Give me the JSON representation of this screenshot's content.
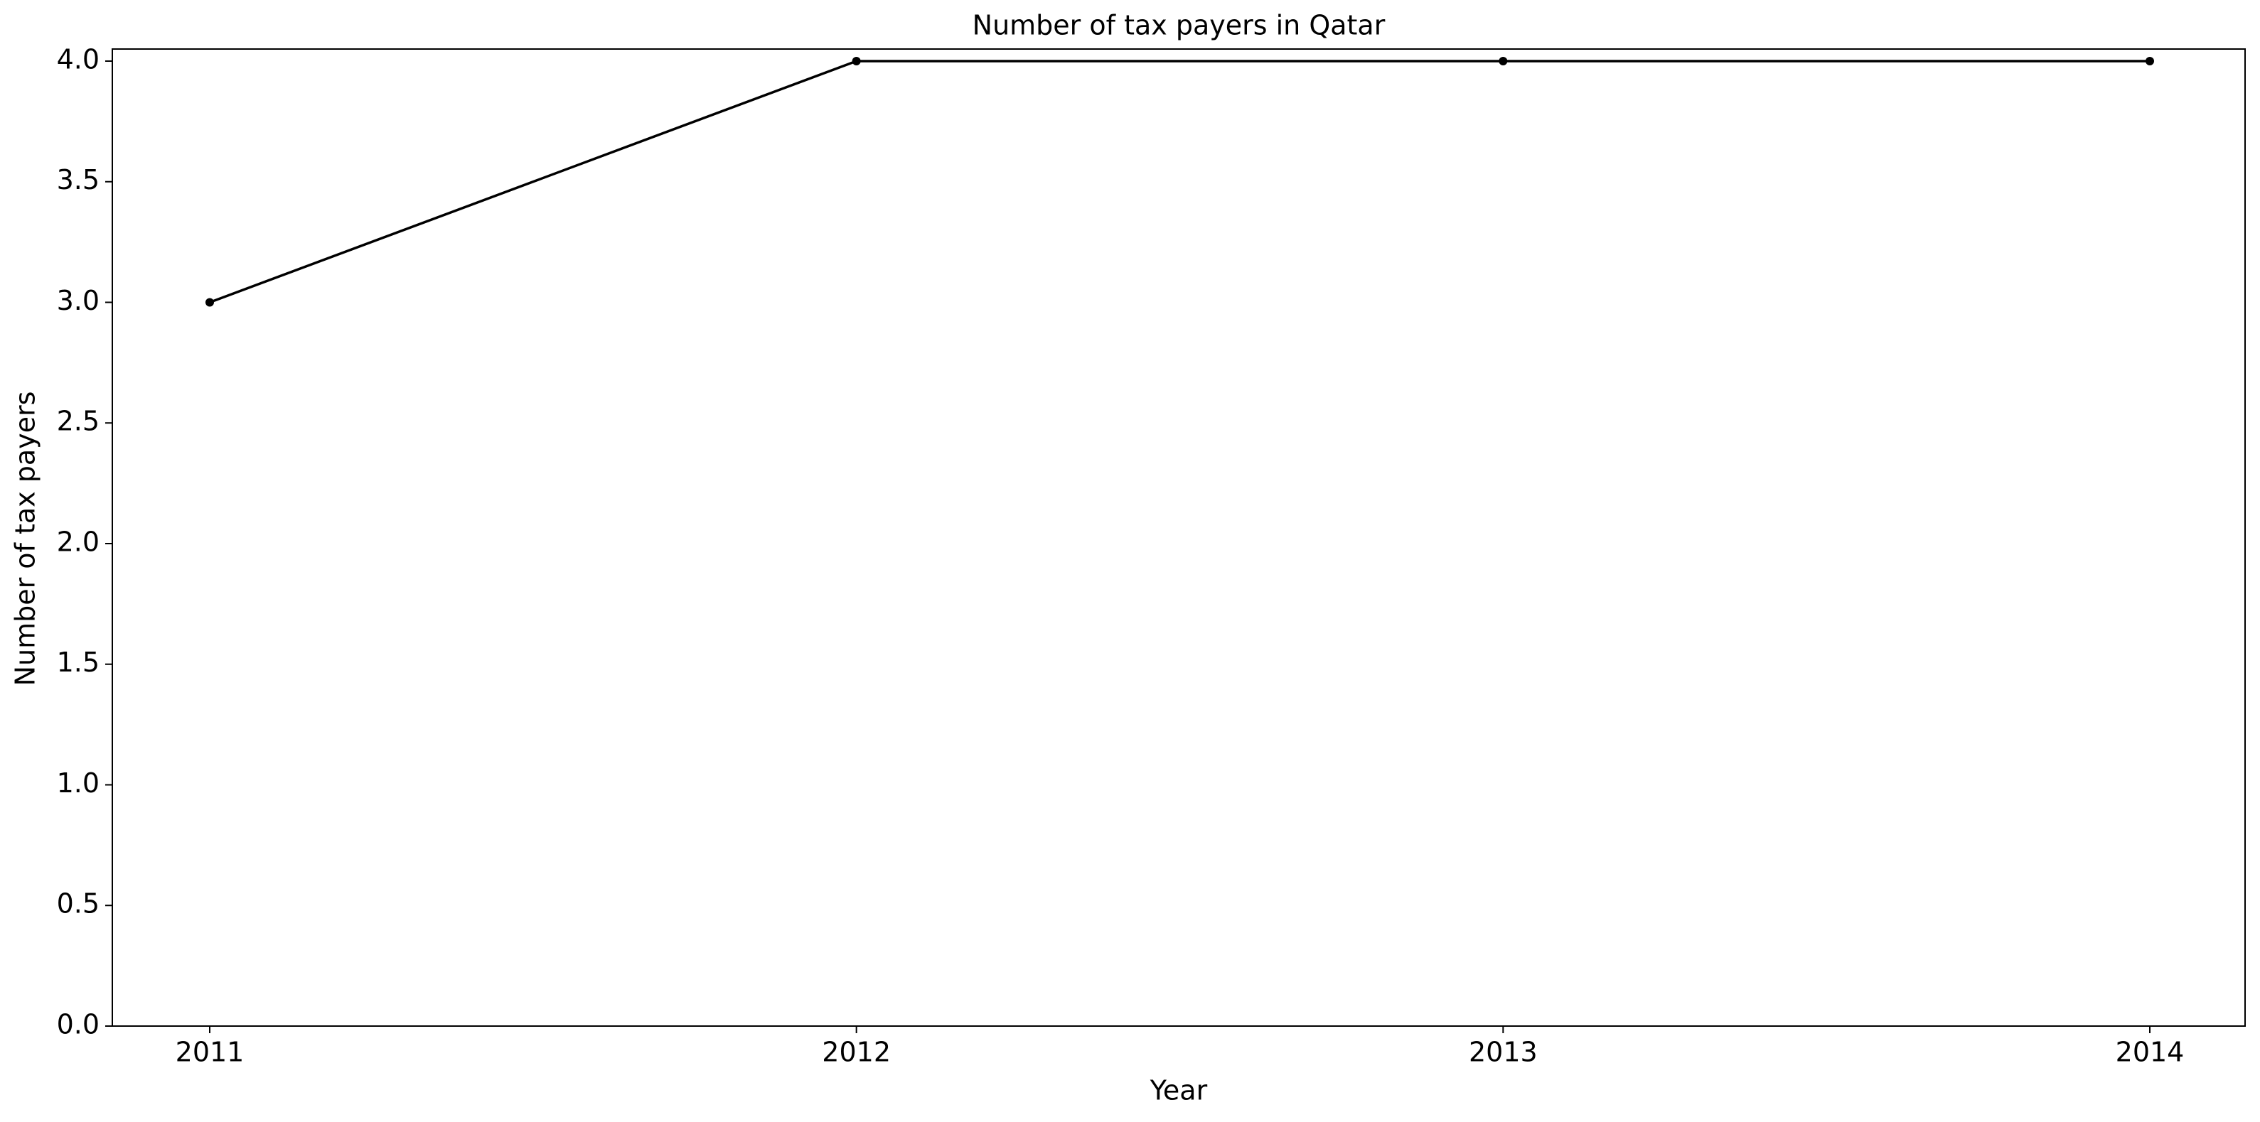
{
  "chart_data": {
    "type": "line",
    "title": "Number of tax payers in Qatar",
    "xlabel": "Year",
    "ylabel": "Number of tax payers",
    "x": [
      "2011",
      "2012",
      "2013",
      "2014"
    ],
    "series": [
      {
        "values": [
          3,
          4,
          4,
          4
        ]
      }
    ],
    "ylim": [
      0,
      4.05
    ],
    "yticks": [
      "0.0",
      "0.5",
      "1.0",
      "1.5",
      "2.0",
      "2.5",
      "3.0",
      "3.5",
      "4.0"
    ],
    "grid": false,
    "legend": "none",
    "colors": {
      "line": "#000000",
      "axes": "#000000",
      "background": "#ffffff"
    }
  }
}
